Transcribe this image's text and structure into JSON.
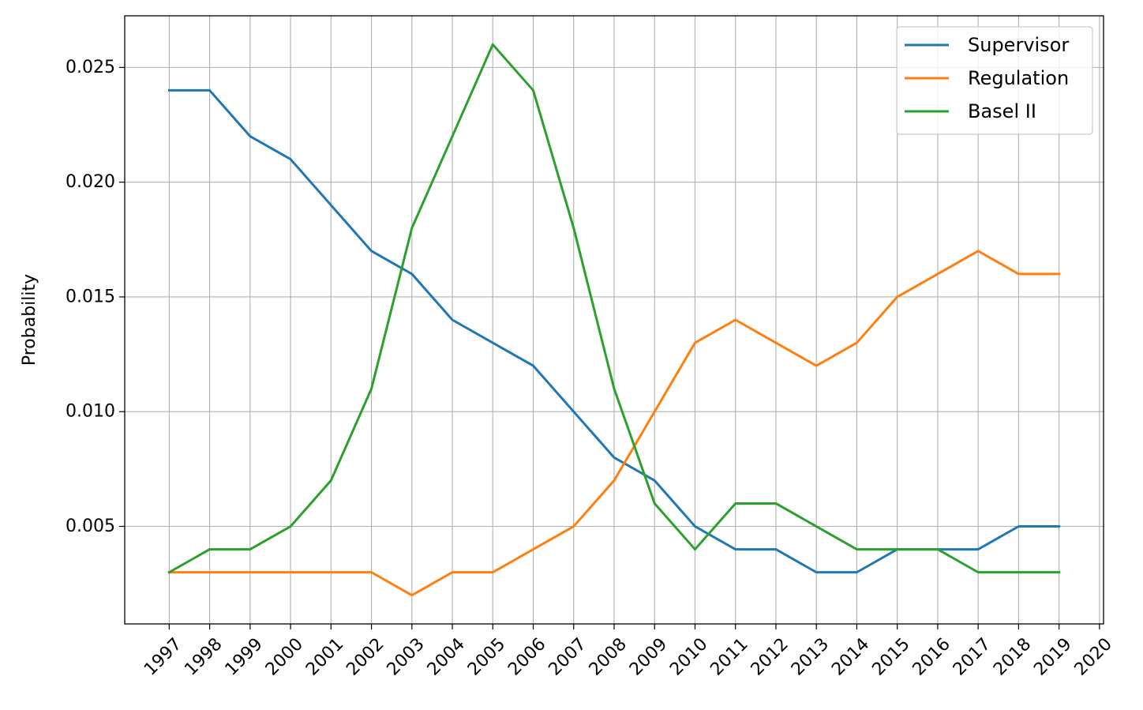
{
  "chart_data": {
    "type": "line",
    "title": "",
    "xlabel": "",
    "ylabel": "Probability",
    "x": [
      1997,
      1998,
      1999,
      2000,
      2001,
      2002,
      2003,
      2004,
      2005,
      2006,
      2007,
      2008,
      2009,
      2010,
      2011,
      2012,
      2013,
      2014,
      2015,
      2016,
      2017,
      2018,
      2019
    ],
    "x_ticks": [
      1997,
      1998,
      1999,
      2000,
      2001,
      2002,
      2003,
      2004,
      2005,
      2006,
      2007,
      2008,
      2009,
      2010,
      2011,
      2012,
      2013,
      2014,
      2015,
      2016,
      2017,
      2018,
      2019,
      2020
    ],
    "xlim": [
      1995.9,
      2020.1
    ],
    "x_tick_rotation": 45,
    "ylim": [
      0.00075,
      0.02725
    ],
    "y_ticks": [
      0.005,
      0.01,
      0.015,
      0.02,
      0.025
    ],
    "y_tick_labels": [
      "0.005",
      "0.010",
      "0.015",
      "0.020",
      "0.025"
    ],
    "grid": true,
    "legend_position": "top-right",
    "series": [
      {
        "name": "Supervisor",
        "color": "#1f77b4",
        "values": [
          0.024,
          0.024,
          0.022,
          0.021,
          0.019,
          0.017,
          0.016,
          0.014,
          0.013,
          0.012,
          0.01,
          0.008,
          0.007,
          0.005,
          0.004,
          0.004,
          0.003,
          0.003,
          0.004,
          0.004,
          0.004,
          0.005,
          0.005
        ]
      },
      {
        "name": "Regulation",
        "color": "#ff7f0e",
        "values": [
          0.003,
          0.003,
          0.003,
          0.003,
          0.003,
          0.003,
          0.002,
          0.003,
          0.003,
          0.004,
          0.005,
          0.007,
          0.01,
          0.013,
          0.014,
          0.013,
          0.012,
          0.013,
          0.015,
          0.016,
          0.017,
          0.016,
          0.016
        ]
      },
      {
        "name": "Basel II",
        "color": "#2ca02c",
        "values": [
          0.003,
          0.004,
          0.004,
          0.005,
          0.007,
          0.011,
          0.018,
          0.022,
          0.026,
          0.024,
          0.018,
          0.011,
          0.006,
          0.004,
          0.006,
          0.006,
          0.005,
          0.004,
          0.004,
          0.004,
          0.003,
          0.003,
          0.003
        ]
      }
    ]
  }
}
